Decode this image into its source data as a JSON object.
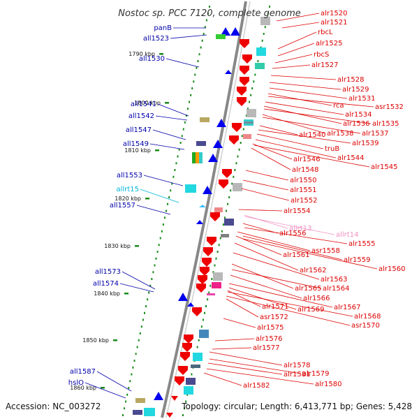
{
  "title": "Nostoc sp. PCC 7120, complete genome",
  "footer": {
    "accession": "Accession: NC_003272",
    "topology": "Topology: circular; Length: 6,413,771 bp; Genes: 5,428"
  },
  "colors": {
    "minus_label": "#0000aa",
    "plus_label": "#dd0000",
    "rna_minus_label": "#00b8d8",
    "rna_plus_label": "#f090c0",
    "backbone": "#888888",
    "tick": "#1a8a1a"
  },
  "ticks": [
    "1790 kbp",
    "1800 kbp",
    "1810 kbp",
    "1820 kbp",
    "1830 kbp",
    "1840 kbp",
    "1850 kbp",
    "1860 kbp"
  ],
  "genes_minus": [
    {
      "label": "panB",
      "type": "gene"
    },
    {
      "label": "all1523",
      "type": "gene"
    },
    {
      "label": "all1530",
      "type": "gene"
    },
    {
      "label": "all1541",
      "type": "gene"
    },
    {
      "label": "all1542",
      "type": "gene"
    },
    {
      "label": "all1547",
      "type": "gene"
    },
    {
      "label": "all1549",
      "type": "gene"
    },
    {
      "label": "all1553",
      "type": "gene"
    },
    {
      "label": "allrt15",
      "type": "rna"
    },
    {
      "label": "all1557",
      "type": "gene"
    },
    {
      "label": "all1573",
      "type": "gene"
    },
    {
      "label": "all1574",
      "type": "gene"
    },
    {
      "label": "all1587",
      "type": "gene"
    },
    {
      "label": "hslO",
      "type": "gene"
    }
  ],
  "genes_plus": [
    {
      "label": "alr1520",
      "type": "gene"
    },
    {
      "label": "alr1521",
      "type": "gene"
    },
    {
      "label": "rbcL",
      "type": "gene"
    },
    {
      "label": "alr1525",
      "type": "gene"
    },
    {
      "label": "rbcS",
      "type": "gene"
    },
    {
      "label": "alr1527",
      "type": "gene"
    },
    {
      "label": "alr1528",
      "type": "gene"
    },
    {
      "label": "alr1529",
      "type": "gene"
    },
    {
      "label": "alr1531",
      "type": "gene"
    },
    {
      "label": "rca",
      "type": "gene"
    },
    {
      "label": "asr1532",
      "type": "gene"
    },
    {
      "label": "alr1534",
      "type": "gene"
    },
    {
      "label": "alr1536",
      "type": "gene"
    },
    {
      "label": "alr1535",
      "type": "gene"
    },
    {
      "label": "alr1538",
      "type": "gene"
    },
    {
      "label": "alr1537",
      "type": "gene"
    },
    {
      "label": "alr1540",
      "type": "gene"
    },
    {
      "label": "alr1539",
      "type": "gene"
    },
    {
      "label": "truB",
      "type": "gene"
    },
    {
      "label": "alr1544",
      "type": "gene"
    },
    {
      "label": "alr1546",
      "type": "gene"
    },
    {
      "label": "alr1545",
      "type": "gene"
    },
    {
      "label": "alr1548",
      "type": "gene"
    },
    {
      "label": "alr1550",
      "type": "gene"
    },
    {
      "label": "alr1551",
      "type": "gene"
    },
    {
      "label": "alr1552",
      "type": "gene"
    },
    {
      "label": "alr1554",
      "type": "gene"
    },
    {
      "label": "allrt13",
      "type": "rna"
    },
    {
      "label": "allrt14",
      "type": "rna"
    },
    {
      "label": "alr1556",
      "type": "gene"
    },
    {
      "label": "alr1555",
      "type": "gene"
    },
    {
      "label": "asr1558",
      "type": "gene"
    },
    {
      "label": "alr1561",
      "type": "gene"
    },
    {
      "label": "alr1559",
      "type": "gene"
    },
    {
      "label": "alr1560",
      "type": "gene"
    },
    {
      "label": "alr1562",
      "type": "gene"
    },
    {
      "label": "alr1563",
      "type": "gene"
    },
    {
      "label": "alr1565",
      "type": "gene"
    },
    {
      "label": "alr1564",
      "type": "gene"
    },
    {
      "label": "alr1566",
      "type": "gene"
    },
    {
      "label": "alr1567",
      "type": "gene"
    },
    {
      "label": "alr1571",
      "type": "gene"
    },
    {
      "label": "alr1569",
      "type": "gene"
    },
    {
      "label": "asr1572",
      "type": "gene"
    },
    {
      "label": "alr1568",
      "type": "gene"
    },
    {
      "label": "asr1570",
      "type": "gene"
    },
    {
      "label": "alr1575",
      "type": "gene"
    },
    {
      "label": "alr1576",
      "type": "gene"
    },
    {
      "label": "alr1577",
      "type": "gene"
    },
    {
      "label": "alr1578",
      "type": "gene"
    },
    {
      "label": "alr1579",
      "type": "gene"
    },
    {
      "label": "alr1581",
      "type": "gene"
    },
    {
      "label": "alr1580",
      "type": "gene"
    },
    {
      "label": "alr1582",
      "type": "gene"
    }
  ]
}
